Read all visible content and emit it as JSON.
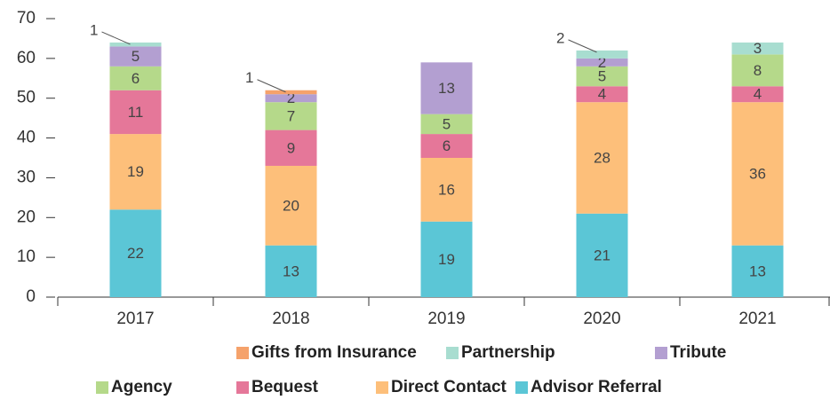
{
  "chart_data": {
    "type": "stacked_bar",
    "categories": [
      "2017",
      "2018",
      "2019",
      "2020",
      "2021"
    ],
    "series": [
      {
        "name": "Advisor Referral",
        "color": "#5bc6d6",
        "values": [
          22,
          13,
          19,
          21,
          13
        ]
      },
      {
        "name": "Direct Contact",
        "color": "#fdbf7a",
        "values": [
          19,
          20,
          16,
          28,
          36
        ]
      },
      {
        "name": "Bequest",
        "color": "#e57799",
        "values": [
          11,
          9,
          6,
          4,
          4
        ]
      },
      {
        "name": "Agency",
        "color": "#b5d98a",
        "values": [
          6,
          7,
          5,
          5,
          8
        ]
      },
      {
        "name": "Tribute",
        "color": "#b39fd1",
        "values": [
          5,
          2,
          13,
          2,
          null
        ]
      },
      {
        "name": "Gifts from Insurance",
        "color": "#f5a26b",
        "values": [
          null,
          1,
          null,
          null,
          null
        ]
      },
      {
        "name": "Partnership",
        "color": "#a8ddd0",
        "values": [
          1,
          null,
          null,
          2,
          3
        ]
      }
    ],
    "ylim": [
      0,
      70
    ],
    "yticks": [
      0,
      10,
      20,
      30,
      40,
      50,
      60,
      70
    ],
    "legend": "bottom"
  }
}
